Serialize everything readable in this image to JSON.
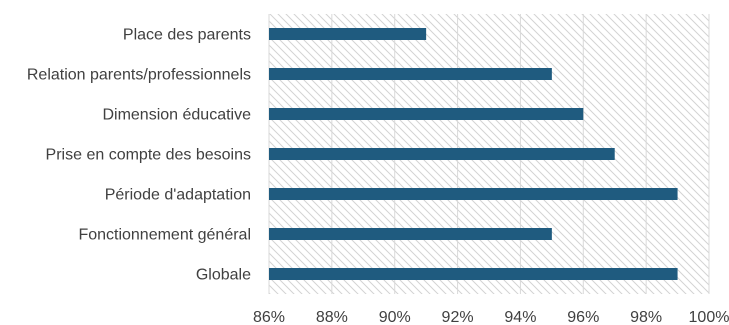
{
  "chart_data": {
    "type": "bar",
    "orientation": "horizontal",
    "categories": [
      "Place des parents",
      "Relation parents/professionnels",
      "Dimension éducative",
      "Prise en compte des besoins",
      "Période d'adaptation",
      "Fonctionnement général",
      "Globale"
    ],
    "values": [
      91,
      95,
      96,
      97,
      99,
      95,
      99
    ],
    "xlim": [
      86,
      100
    ],
    "xticks": [
      "86%",
      "88%",
      "90%",
      "92%",
      "94%",
      "96%",
      "98%",
      "100%"
    ],
    "grid": true,
    "legend": "none",
    "colors": {
      "bar": "#1f5b7f",
      "grid": "#d9d9d9",
      "hatch": "#d3d3d3",
      "text": "#404040"
    }
  }
}
